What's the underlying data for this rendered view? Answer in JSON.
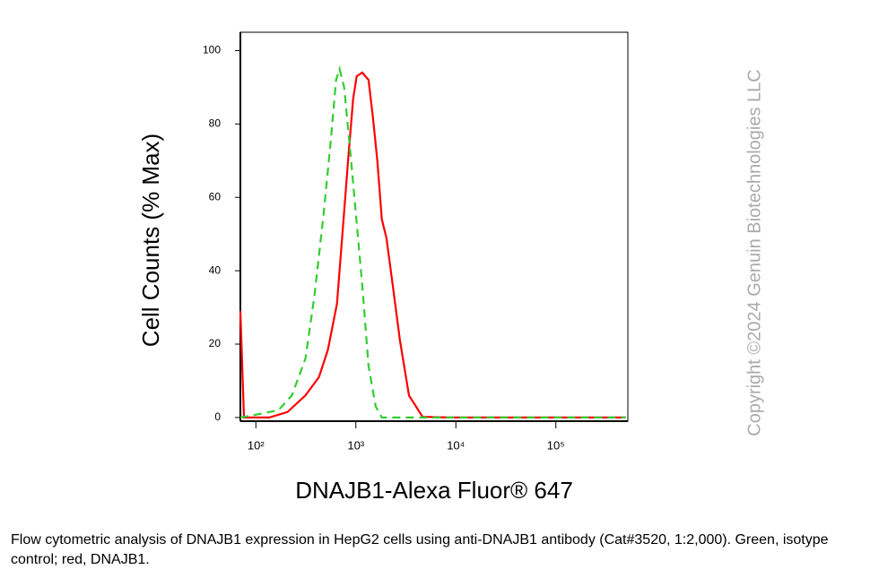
{
  "chart_data": {
    "type": "line",
    "xscale": "log",
    "ylabel": "Cell Counts (% Max)",
    "xlabel": "DNAJB1-Alexa Fluor® 647",
    "xlim": [
      70,
      525000
    ],
    "ylim": [
      -1,
      105
    ],
    "xticks": [
      {
        "value": 100,
        "label": "10²"
      },
      {
        "value": 1000,
        "label": "10³"
      },
      {
        "value": 10000,
        "label": "10⁴"
      },
      {
        "value": 100000,
        "label": "10⁵"
      }
    ],
    "yticks": [
      0,
      20,
      40,
      60,
      80,
      100
    ],
    "series": [
      {
        "color": "#ff0000",
        "line_style": "solid",
        "x": [
          70,
          76,
          136,
          207,
          313,
          427,
          526,
          647,
          748,
          847,
          940,
          1020,
          1160,
          1340,
          1480,
          1640,
          1820,
          2020,
          2340,
          2760,
          3400,
          4640,
          8650,
          68900,
          500000
        ],
        "values": [
          29,
          0,
          0,
          1.5,
          6,
          11,
          18.5,
          31,
          53,
          72,
          87,
          93,
          94,
          92,
          82,
          70,
          54,
          49,
          36,
          21,
          6,
          0.2,
          0,
          0,
          0
        ]
      },
      {
        "color": "#33cc33",
        "line_style": "dashed",
        "x": [
          70,
          111,
          168,
          229,
          313,
          385,
          474,
          559,
          634,
          688,
          764,
          883,
          1020,
          1160,
          1340,
          1580,
          1820,
          500000
        ],
        "values": [
          0,
          1,
          2,
          6,
          16,
          33,
          55,
          75,
          92,
          95,
          90,
          72,
          53,
          36,
          14,
          3,
          0,
          0
        ]
      }
    ]
  },
  "watermark": "Copyright ©2024 Genuin Biotechnologies LLC",
  "caption": "Flow cytometric analysis of DNAJB1 expression in HepG2 cells using anti-DNAJB1 antibody (Cat#3520, 1:2,000). Green, isotype control; red, DNAJB1."
}
